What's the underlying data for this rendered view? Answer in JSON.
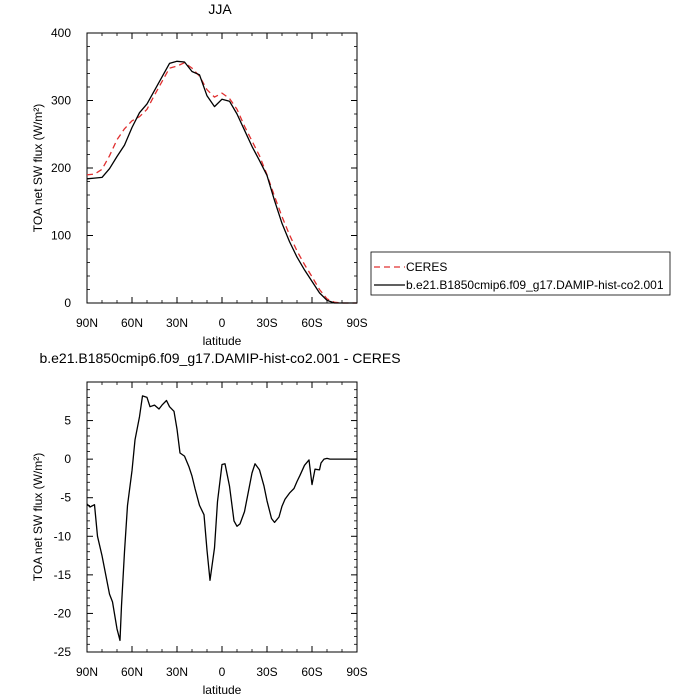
{
  "chart_data": [
    {
      "type": "line",
      "title": "JJA",
      "xlabel": "latitude",
      "ylabel": "TOA net SW flux (W/m²)",
      "xlim": [
        90,
        -90
      ],
      "ylim": [
        0,
        400
      ],
      "x_ticks": [
        90,
        60,
        30,
        0,
        -30,
        -60,
        -90
      ],
      "x_tick_labels": [
        "90N",
        "60N",
        "30N",
        "0",
        "30S",
        "60S",
        "90S"
      ],
      "y_ticks": [
        0,
        100,
        200,
        300,
        400
      ],
      "y_tick_labels": [
        "0",
        "100",
        "200",
        "300",
        "400"
      ],
      "legend": {
        "position": "right",
        "entries": [
          "CERES",
          "b.e21.B1850cmip6.f09_g17.DAMIP-hist-co2.001"
        ]
      },
      "series": [
        {
          "name": "CERES",
          "color": "#e03030",
          "dash": "dashed",
          "x": [
            90,
            85,
            80,
            75,
            70,
            65,
            60,
            55,
            50,
            45,
            40,
            35,
            30,
            25,
            20,
            15,
            10,
            5,
            0,
            -5,
            -10,
            -15,
            -20,
            -25,
            -30,
            -35,
            -40,
            -45,
            -50,
            -55,
            -60,
            -65,
            -70,
            -75,
            -80,
            -85,
            -90
          ],
          "y": [
            190,
            191,
            198,
            218,
            242,
            258,
            270,
            276,
            287,
            308,
            328,
            348,
            351,
            356,
            348,
            336,
            316,
            305,
            311,
            303,
            287,
            262,
            240,
            218,
            190,
            158,
            128,
            101,
            77,
            57,
            39,
            20,
            6,
            1,
            0,
            0,
            0
          ]
        },
        {
          "name": "b.e21.B1850cmip6.f09_g17.DAMIP-hist-co2.001",
          "color": "#000000",
          "dash": "solid",
          "x": [
            90,
            85,
            80,
            75,
            70,
            65,
            60,
            55,
            50,
            45,
            40,
            35,
            30,
            25,
            20,
            15,
            10,
            5,
            0,
            -5,
            -10,
            -15,
            -20,
            -25,
            -30,
            -35,
            -40,
            -45,
            -50,
            -55,
            -60,
            -65,
            -70,
            -75,
            -80,
            -85,
            -90
          ],
          "y": [
            184,
            185,
            186,
            199,
            217,
            234,
            260,
            282,
            295,
            315,
            335,
            355,
            358,
            357,
            343,
            338,
            307,
            291,
            302,
            299,
            280,
            256,
            232,
            211,
            189,
            152,
            118,
            91,
            68,
            49,
            32,
            15,
            4,
            0,
            0,
            0,
            0
          ]
        }
      ]
    },
    {
      "type": "line",
      "title": "b.e21.B1850cmip6.f09_g17.DAMIP-hist-co2.001 - CERES",
      "xlabel": "latitude",
      "ylabel": "TOA net SW flux (W/m²)",
      "xlim": [
        90,
        -90
      ],
      "ylim": [
        -25,
        10
      ],
      "x_ticks": [
        90,
        60,
        30,
        0,
        -30,
        -60,
        -90
      ],
      "x_tick_labels": [
        "90N",
        "60N",
        "30N",
        "0",
        "30S",
        "60S",
        "90S"
      ],
      "y_ticks": [
        -25,
        -20,
        -15,
        -10,
        -5,
        0,
        5
      ],
      "y_tick_labels": [
        "-25",
        "-20",
        "-15",
        "-10",
        "-5",
        "0",
        "5"
      ],
      "series": [
        {
          "color": "#000000",
          "dash": "solid",
          "x": [
            90,
            88,
            85,
            83,
            80,
            78,
            75,
            73,
            70,
            68,
            67,
            65,
            63,
            60,
            58,
            55,
            53,
            50,
            48,
            45,
            42,
            40,
            37,
            35,
            32,
            30,
            28,
            25,
            22,
            20,
            18,
            15,
            12,
            10,
            8,
            5,
            3,
            0,
            -2,
            -5,
            -8,
            -10,
            -12,
            -15,
            -18,
            -20,
            -22,
            -25,
            -28,
            -30,
            -33,
            -35,
            -38,
            -40,
            -42,
            -45,
            -48,
            -50,
            -52,
            -55,
            -58,
            -60,
            -62,
            -65,
            -66,
            -68,
            -70,
            -72,
            -75,
            -78,
            -80,
            -85,
            -90
          ],
          "y": [
            -5.8,
            -6.2,
            -5.9,
            -10.0,
            -12.5,
            -14.5,
            -17.5,
            -18.5,
            -22.0,
            -23.5,
            -19.0,
            -12.0,
            -6.0,
            -1.5,
            2.5,
            5.5,
            8.2,
            8.0,
            6.8,
            7.0,
            6.5,
            7.0,
            7.6,
            6.8,
            6.2,
            3.9,
            0.8,
            0.4,
            -1.0,
            -2.2,
            -3.8,
            -6.0,
            -7.2,
            -11.8,
            -15.7,
            -11.5,
            -5.5,
            -0.7,
            -0.6,
            -3.5,
            -8.0,
            -8.7,
            -8.4,
            -6.8,
            -3.8,
            -1.8,
            -0.6,
            -1.4,
            -3.5,
            -5.4,
            -7.7,
            -8.2,
            -7.5,
            -6.1,
            -5.2,
            -4.4,
            -3.8,
            -2.9,
            -2.1,
            -0.8,
            -0.1,
            -3.3,
            -1.3,
            -1.4,
            -0.5,
            0.0,
            0.1,
            0.0,
            0.0,
            0.0,
            0.0,
            0.0,
            0.0
          ]
        }
      ]
    }
  ]
}
